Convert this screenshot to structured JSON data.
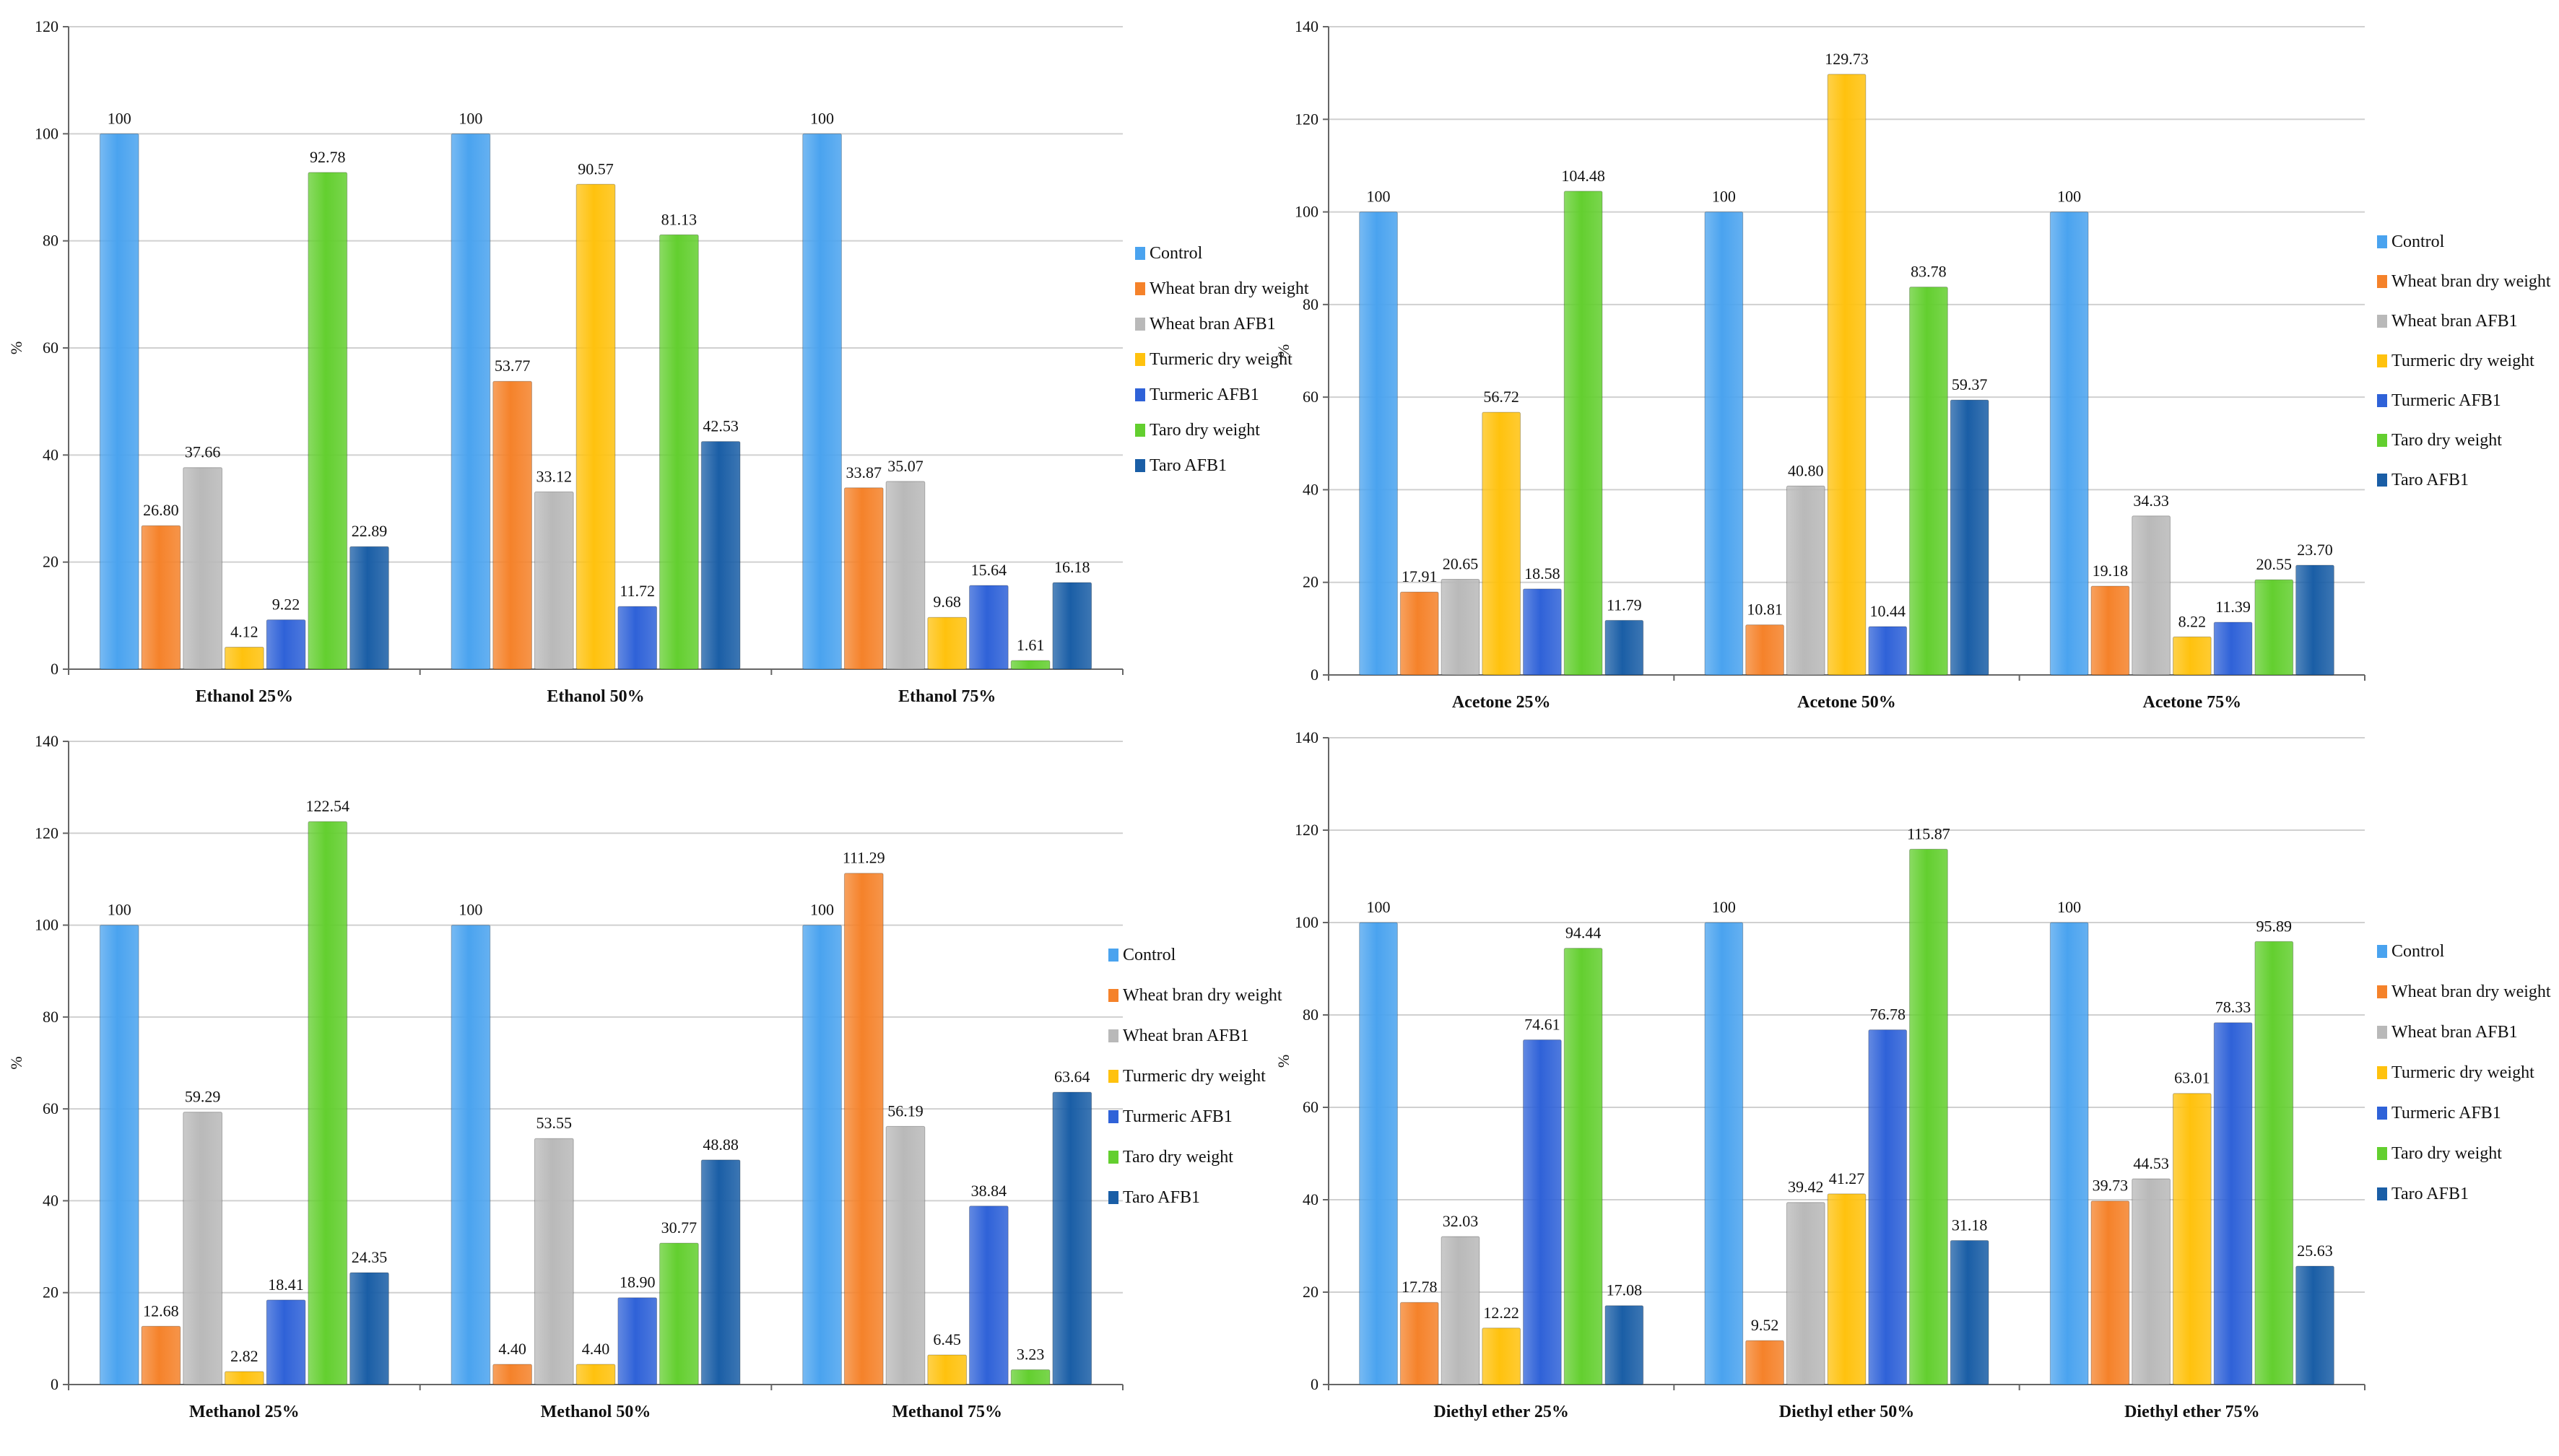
{
  "colors": {
    "Control": "#4aa3ef",
    "Wheat bran dry weight": "#f5822a",
    "Wheat bran AFB1": "#b9b9b9",
    "Turmeric dry weight": "#ffc20e",
    "Turmeric AFB1": "#2f62d8",
    "Taro dry weight": "#63cf2f",
    "Taro AFB1": "#1a5ea6"
  },
  "chart_data": [
    {
      "type": "bar",
      "categories": [
        "Ethanol 25%",
        "Ethanol 50%",
        "Ethanol 75%"
      ],
      "ylabel": "%",
      "ylim": [
        0,
        120
      ],
      "yticks": [
        "0",
        "20",
        "40",
        "60",
        "80",
        "100",
        "120"
      ],
      "legend_position": "right",
      "grid": true,
      "series": [
        {
          "name": "Control",
          "values": [
            100,
            100,
            100
          ],
          "labels": [
            "100",
            "100",
            "100"
          ]
        },
        {
          "name": "Wheat bran dry weight",
          "values": [
            26.8,
            53.77,
            33.87
          ],
          "labels": [
            "26.80",
            "53.77",
            "33.87"
          ]
        },
        {
          "name": "Wheat bran AFB1",
          "values": [
            37.66,
            33.12,
            35.07
          ],
          "labels": [
            "37.66",
            "33.12",
            "35.07"
          ]
        },
        {
          "name": "Turmeric dry weight",
          "values": [
            4.12,
            90.57,
            9.68
          ],
          "labels": [
            "4.12",
            "90.57",
            "9.68"
          ]
        },
        {
          "name": "Turmeric AFB1",
          "values": [
            9.22,
            11.72,
            15.64
          ],
          "labels": [
            "9.22",
            "11.72",
            "15.64"
          ]
        },
        {
          "name": "Taro dry weight",
          "values": [
            92.78,
            81.13,
            1.61
          ],
          "labels": [
            "92.78",
            "81.13",
            "1.61"
          ]
        },
        {
          "name": "Taro AFB1",
          "values": [
            22.89,
            42.53,
            16.18
          ],
          "labels": [
            "22.89",
            "42.53",
            "16.18"
          ]
        }
      ]
    },
    {
      "type": "bar",
      "categories": [
        "Acetone 25%",
        "Acetone 50%",
        "Acetone 75%"
      ],
      "ylabel": "%",
      "ylim": [
        0,
        140
      ],
      "yticks": [
        "0",
        "20",
        "40",
        "60",
        "80",
        "100",
        "120",
        "140"
      ],
      "legend_position": "right",
      "grid": true,
      "series": [
        {
          "name": "Control",
          "values": [
            100,
            100,
            100
          ],
          "labels": [
            "100",
            "100",
            "100"
          ]
        },
        {
          "name": "Wheat bran dry weight",
          "values": [
            17.91,
            10.81,
            19.18
          ],
          "labels": [
            "17.91",
            "10.81",
            "19.18"
          ]
        },
        {
          "name": "Wheat bran AFB1",
          "values": [
            20.65,
            40.8,
            34.33
          ],
          "labels": [
            "20.65",
            "40.80",
            "34.33"
          ]
        },
        {
          "name": "Turmeric dry weight",
          "values": [
            56.72,
            129.73,
            8.22
          ],
          "labels": [
            "56.72",
            "129.73",
            "8.22"
          ]
        },
        {
          "name": "Turmeric AFB1",
          "values": [
            18.58,
            10.44,
            11.39
          ],
          "labels": [
            "18.58",
            "10.44",
            "11.39"
          ]
        },
        {
          "name": "Taro dry weight",
          "values": [
            104.48,
            83.78,
            20.55
          ],
          "labels": [
            "104.48",
            "83.78",
            "20.55"
          ]
        },
        {
          "name": "Taro AFB1",
          "values": [
            11.79,
            59.37,
            23.7
          ],
          "labels": [
            "11.79",
            "59.37",
            "23.70"
          ]
        }
      ]
    },
    {
      "type": "bar",
      "categories": [
        "Methanol 25%",
        "Methanol 50%",
        "Methanol 75%"
      ],
      "ylabel": "%",
      "ylim": [
        0,
        140
      ],
      "yticks": [
        "0",
        "20",
        "40",
        "60",
        "80",
        "100",
        "120",
        "140"
      ],
      "legend_position": "right",
      "grid": true,
      "series": [
        {
          "name": "Control",
          "values": [
            100,
            100,
            100
          ],
          "labels": [
            "100",
            "100",
            "100"
          ]
        },
        {
          "name": "Wheat bran dry weight",
          "values": [
            12.68,
            4.4,
            111.29
          ],
          "labels": [
            "12.68",
            "4.40",
            "111.29"
          ]
        },
        {
          "name": "Wheat bran AFB1",
          "values": [
            59.29,
            53.55,
            56.19
          ],
          "labels": [
            "59.29",
            "53.55",
            "56.19"
          ]
        },
        {
          "name": "Turmeric dry weight",
          "values": [
            2.82,
            4.4,
            6.45
          ],
          "labels": [
            "2.82",
            "4.40",
            "6.45"
          ]
        },
        {
          "name": "Turmeric AFB1",
          "values": [
            18.41,
            18.9,
            38.84
          ],
          "labels": [
            "18.41",
            "18.90",
            "38.84"
          ]
        },
        {
          "name": "Taro dry weight",
          "values": [
            122.54,
            30.77,
            3.23
          ],
          "labels": [
            "122.54",
            "30.77",
            "3.23"
          ]
        },
        {
          "name": "Taro AFB1",
          "values": [
            24.35,
            48.88,
            63.64
          ],
          "labels": [
            "24.35",
            "48.88",
            "63.64"
          ]
        }
      ]
    },
    {
      "type": "bar",
      "categories": [
        "Diethyl ether 25%",
        "Diethyl ether 50%",
        "Diethyl ether 75%"
      ],
      "ylabel": "%",
      "ylim": [
        0,
        140
      ],
      "yticks": [
        "0",
        "20",
        "40",
        "60",
        "80",
        "100",
        "120",
        "140"
      ],
      "legend_position": "right",
      "grid": true,
      "series": [
        {
          "name": "Control",
          "values": [
            100,
            100,
            100
          ],
          "labels": [
            "100",
            "100",
            "100"
          ]
        },
        {
          "name": "Wheat bran dry weight",
          "values": [
            17.78,
            9.52,
            39.73
          ],
          "labels": [
            "17.78",
            "9.52",
            "39.73"
          ]
        },
        {
          "name": "Wheat bran AFB1",
          "values": [
            32.03,
            39.42,
            44.53
          ],
          "labels": [
            "32.03",
            "39.42",
            "44.53"
          ]
        },
        {
          "name": "Turmeric dry weight",
          "values": [
            12.22,
            41.27,
            63.01
          ],
          "labels": [
            "12.22",
            "41.27",
            "63.01"
          ]
        },
        {
          "name": "Turmeric AFB1",
          "values": [
            74.61,
            76.78,
            78.33
          ],
          "labels": [
            "74.61",
            "76.78",
            "78.33"
          ]
        },
        {
          "name": "Taro dry weight",
          "values": [
            94.44,
            115.87,
            95.89
          ],
          "labels": [
            "94.44",
            "115.87",
            "95.89"
          ]
        },
        {
          "name": "Taro AFB1",
          "values": [
            17.08,
            31.18,
            25.63
          ],
          "labels": [
            "17.08",
            "31.18",
            "25.63"
          ]
        }
      ]
    }
  ]
}
